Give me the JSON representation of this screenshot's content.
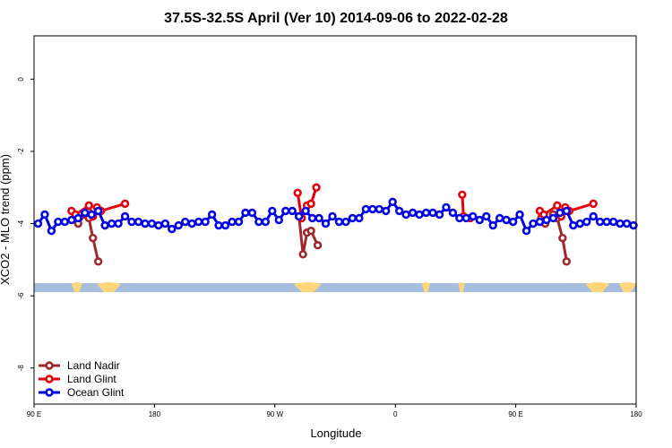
{
  "chart_data": {
    "type": "line",
    "title": "37.5S-32.5S April (Ver 10)   2014-09-06 to 2022-02-28",
    "xlabel": "Longitude",
    "ylabel": "XCO2 - MLO trend (ppm)",
    "xlim": [
      90,
      540
    ],
    "ylim": [
      -9,
      1.2
    ],
    "x_ticks": [
      {
        "value": 90,
        "label": "90 E"
      },
      {
        "value": 180,
        "label": "180"
      },
      {
        "value": 270,
        "label": "90 W"
      },
      {
        "value": 360,
        "label": "0"
      },
      {
        "value": 450,
        "label": "90 E"
      },
      {
        "value": 540,
        "label": "180"
      }
    ],
    "y_ticks": [
      {
        "value": 0,
        "label": "0"
      },
      {
        "value": -2,
        "label": "-2"
      },
      {
        "value": -4,
        "label": "-4"
      },
      {
        "value": -6,
        "label": "-6"
      },
      {
        "value": -8,
        "label": "-8"
      }
    ],
    "legend_position": "bottom-left",
    "map_strip": {
      "y_range": [
        -5.9,
        -5.65
      ],
      "ocean_color": "#a7bfdf",
      "land_color": "#ffd77a",
      "land_segments": [
        [
          118,
          126
        ],
        [
          137,
          155
        ],
        [
          284,
          305
        ],
        [
          380,
          386
        ],
        [
          407,
          412
        ],
        [
          502,
          520
        ],
        [
          527,
          540
        ]
      ]
    },
    "series": [
      {
        "name": "Land Nadir",
        "color": "#a0282d",
        "segments": [
          [
            [
              121,
              -3.85
            ],
            [
              123,
              -4.0
            ],
            [
              128,
              -3.75
            ],
            [
              131,
              -3.85
            ],
            [
              134,
              -4.4
            ],
            [
              138,
              -5.05
            ]
          ],
          [
            [
              288,
              -3.8
            ],
            [
              291,
              -4.85
            ],
            [
              294,
              -4.25
            ],
            [
              297,
              -4.2
            ],
            [
              302,
              -4.6
            ]
          ],
          [
            [
              469,
              -3.85
            ],
            [
              472,
              -4.0
            ],
            [
              478,
              -3.75
            ],
            [
              481,
              -3.85
            ],
            [
              485,
              -4.4
            ],
            [
              488,
              -5.05
            ]
          ]
        ]
      },
      {
        "name": "Land Glint",
        "color": "#e6000a",
        "segments": [
          [
            [
              118,
              -3.65
            ],
            [
              121,
              -3.75
            ],
            [
              131,
              -3.5
            ],
            [
              134,
              -3.8
            ],
            [
              137,
              -3.55
            ],
            [
              140,
              -3.65
            ],
            [
              158,
              -3.45
            ]
          ],
          [
            [
              287,
              -3.15
            ],
            [
              290,
              -3.85
            ],
            [
              294,
              -3.5
            ],
            [
              297,
              -3.45
            ],
            [
              301,
              -3.0
            ]
          ],
          [
            [
              410,
              -3.2
            ],
            [
              411,
              -3.8
            ],
            [
              416,
              -3.85
            ]
          ],
          [
            [
              468,
              -3.65
            ],
            [
              471,
              -3.75
            ],
            [
              481,
              -3.5
            ],
            [
              484,
              -3.8
            ],
            [
              487,
              -3.55
            ],
            [
              490,
              -3.65
            ],
            [
              508,
              -3.45
            ]
          ]
        ]
      },
      {
        "name": "Ocean Glint",
        "color": "#0000e6",
        "segments": [
          [
            [
              93,
              -4.0
            ],
            [
              98,
              -3.75
            ],
            [
              103,
              -4.2
            ],
            [
              108,
              -3.95
            ],
            [
              113,
              -3.95
            ],
            [
              118,
              -3.9
            ],
            [
              123,
              -3.85
            ],
            [
              128,
              -3.7
            ],
            [
              133,
              -3.75
            ],
            [
              138,
              -3.65
            ],
            [
              143,
              -4.05
            ],
            [
              148,
              -4.0
            ],
            [
              153,
              -4.0
            ],
            [
              158,
              -3.8
            ],
            [
              163,
              -3.95
            ],
            [
              168,
              -3.95
            ],
            [
              173,
              -4.0
            ],
            [
              178,
              -4.0
            ],
            [
              183,
              -4.05
            ],
            [
              188,
              -4.0
            ],
            [
              193,
              -4.15
            ],
            [
              198,
              -4.05
            ],
            [
              203,
              -3.95
            ],
            [
              208,
              -4.0
            ],
            [
              213,
              -3.95
            ],
            [
              218,
              -3.95
            ],
            [
              223,
              -3.75
            ],
            [
              228,
              -4.05
            ],
            [
              233,
              -4.05
            ],
            [
              238,
              -3.95
            ],
            [
              243,
              -3.95
            ],
            [
              248,
              -3.7
            ],
            [
              253,
              -3.7
            ],
            [
              258,
              -3.95
            ],
            [
              263,
              -3.95
            ],
            [
              268,
              -3.65
            ],
            [
              273,
              -3.9
            ],
            [
              278,
              -3.65
            ],
            [
              283,
              -3.65
            ],
            [
              288,
              -3.8
            ],
            [
              293,
              -3.65
            ],
            [
              298,
              -3.85
            ],
            [
              303,
              -3.85
            ],
            [
              308,
              -4.0
            ],
            [
              313,
              -3.8
            ],
            [
              318,
              -3.95
            ],
            [
              323,
              -3.95
            ],
            [
              328,
              -3.85
            ],
            [
              333,
              -3.85
            ],
            [
              338,
              -3.6
            ],
            [
              343,
              -3.6
            ],
            [
              348,
              -3.6
            ],
            [
              353,
              -3.65
            ],
            [
              358,
              -3.4
            ],
            [
              363,
              -3.65
            ],
            [
              368,
              -3.75
            ],
            [
              373,
              -3.7
            ],
            [
              378,
              -3.75
            ],
            [
              383,
              -3.7
            ],
            [
              388,
              -3.7
            ],
            [
              393,
              -3.75
            ],
            [
              398,
              -3.55
            ],
            [
              403,
              -3.7
            ],
            [
              408,
              -3.85
            ],
            [
              413,
              -3.85
            ],
            [
              418,
              -3.8
            ],
            [
              423,
              -3.9
            ],
            [
              428,
              -3.8
            ],
            [
              433,
              -4.05
            ],
            [
              438,
              -3.85
            ],
            [
              443,
              -3.9
            ],
            [
              448,
              -3.95
            ],
            [
              453,
              -3.75
            ],
            [
              458,
              -4.2
            ],
            [
              463,
              -4.0
            ],
            [
              468,
              -3.95
            ],
            [
              473,
              -3.9
            ],
            [
              478,
              -3.85
            ],
            [
              483,
              -3.7
            ],
            [
              488,
              -3.65
            ],
            [
              493,
              -4.05
            ],
            [
              498,
              -4.0
            ],
            [
              503,
              -3.95
            ],
            [
              508,
              -3.8
            ],
            [
              513,
              -3.95
            ],
            [
              518,
              -3.95
            ],
            [
              523,
              -3.95
            ],
            [
              528,
              -4.0
            ],
            [
              533,
              -4.0
            ],
            [
              538,
              -4.05
            ]
          ]
        ]
      }
    ]
  }
}
